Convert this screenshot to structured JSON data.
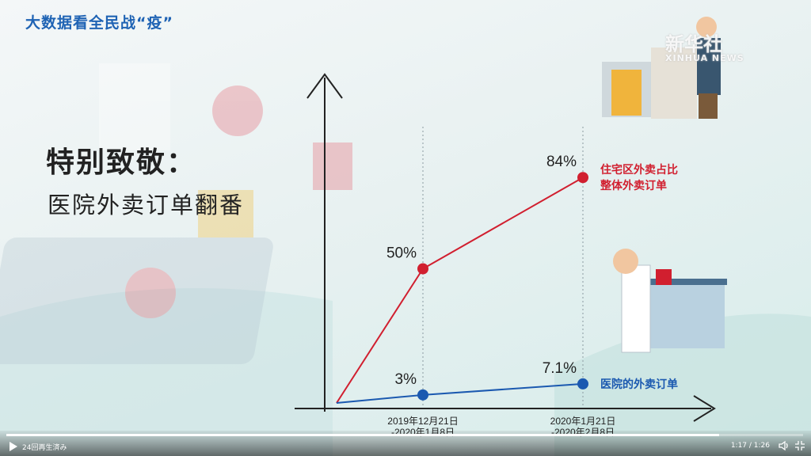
{
  "topic": "大数据看全民战“疫”",
  "watermark": {
    "main": "新华社",
    "sub": "XINHUA NEWS"
  },
  "heading": {
    "line1": "特别致敬：",
    "line2": "医院外卖订单翻番"
  },
  "colors": {
    "red": "#d11f2f",
    "blue": "#1b59b0",
    "axis": "#222222"
  },
  "chart_data": {
    "type": "line",
    "x": [
      "",
      "2019年12月21日\n-2020年1月8日",
      "2020年1月21日\n-2020年2月8日"
    ],
    "tick_labels": [
      [
        "2019年12月21日",
        "-2020年1月8日"
      ],
      [
        "2020年1月21日",
        "-2020年2月8日"
      ]
    ],
    "ylim": [
      0,
      100
    ],
    "series": [
      {
        "name": "住宅区外卖占比整体外卖订单",
        "label_lines": [
          "住宅区外卖占比",
          "整体外卖订单"
        ],
        "color": "#d11f2f",
        "values": [
          0,
          50,
          84
        ],
        "data_labels": [
          "",
          "50%",
          "84%"
        ]
      },
      {
        "name": "医院的外卖订单",
        "label_lines": [
          "医院的外卖订单"
        ],
        "color": "#1b59b0",
        "values": [
          0,
          3,
          7.1
        ],
        "data_labels": [
          "",
          "3%",
          "7.1%"
        ]
      }
    ]
  },
  "player": {
    "play_count": "24回再生済み",
    "time": "1:17 / 1:26",
    "progress": 0.895,
    "icons": [
      "play-icon",
      "volume-icon",
      "fullscreen-exit-icon"
    ]
  }
}
